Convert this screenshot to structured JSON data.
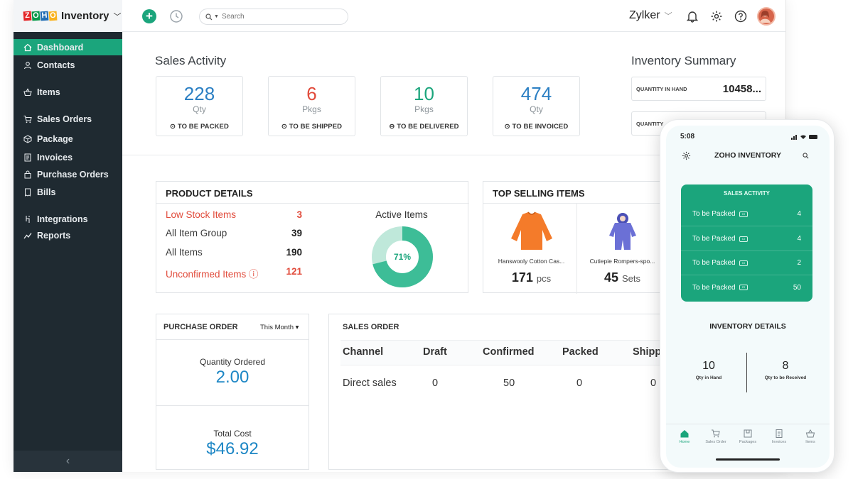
{
  "brand": {
    "logo_letters": [
      "Z",
      "O",
      "H",
      "O"
    ],
    "logo_colors": [
      "#e42527",
      "#089949",
      "#226db4",
      "#f9b21d"
    ],
    "product": "Inventory"
  },
  "sidebar": {
    "items": [
      {
        "label": "Dashboard",
        "icon": "home-icon"
      },
      {
        "label": "Contacts",
        "icon": "user-icon"
      },
      {
        "label": "Items",
        "icon": "basket-icon"
      },
      {
        "label": "Sales Orders",
        "icon": "cart-icon"
      },
      {
        "label": "Package",
        "icon": "box-icon"
      },
      {
        "label": "Invoices",
        "icon": "document-icon"
      },
      {
        "label": "Purchase Orders",
        "icon": "bag-icon"
      },
      {
        "label": "Bills",
        "icon": "bill-icon"
      },
      {
        "label": "Integrations",
        "icon": "integration-icon"
      },
      {
        "label": "Reports",
        "icon": "chart-icon"
      }
    ],
    "active_index": 0,
    "collapse_glyph": "‹"
  },
  "topbar": {
    "search_placeholder": "Search",
    "org_name": "Zylker"
  },
  "sales_activity": {
    "title": "Sales Activity",
    "cards": [
      {
        "value": "228",
        "unit": "Qty",
        "label": "TO BE PACKED",
        "color": "#2b7fc3",
        "icon": "check-circle-icon"
      },
      {
        "value": "6",
        "unit": "Pkgs",
        "label": "TO BE SHIPPED",
        "color": "#e14b3b",
        "icon": "truck-circle-icon"
      },
      {
        "value": "10",
        "unit": "Pkgs",
        "label": "TO BE DELIVERED",
        "color": "#1ba57c",
        "icon": "delivery-circle-icon"
      },
      {
        "value": "474",
        "unit": "Qty",
        "label": "TO BE INVOICED",
        "color": "#2b7fc3",
        "icon": "invoice-circle-icon"
      }
    ]
  },
  "inventory_summary": {
    "title": "Inventory Summary",
    "rows": [
      {
        "label": "QUANTITY IN HAND",
        "value": "10458..."
      },
      {
        "label": "QUANTITY",
        "value": ""
      }
    ]
  },
  "product_details": {
    "title": "PRODUCT DETAILS",
    "rows": [
      {
        "label": "Low Stock Items",
        "value": "3",
        "warn": true
      },
      {
        "label": "All Item Group",
        "value": "39",
        "warn": false
      },
      {
        "label": "All Items",
        "value": "190",
        "warn": false
      },
      {
        "label": "Unconfirmed Items ⓘ",
        "value": "121",
        "warn": true
      }
    ],
    "active_items_label": "Active Items",
    "active_items_percent": 71,
    "active_items_text": "71%"
  },
  "top_selling": {
    "title": "TOP SELLING ITEMS",
    "items": [
      {
        "name": "Hanswooly Cotton Cas...",
        "qty": "171",
        "unit": "pcs",
        "icon": "sweater-icon"
      },
      {
        "name": "Cutiepie Rompers-spo...",
        "qty": "45",
        "unit": "Sets",
        "icon": "romper-icon"
      }
    ]
  },
  "purchase_order": {
    "title": "PURCHASE ORDER",
    "period": "This Month",
    "qty_label": "Quantity Ordered",
    "qty_value": "2.00",
    "cost_label": "Total Cost",
    "cost_value": "$46.92"
  },
  "sales_order": {
    "title": "SALES ORDER",
    "columns": [
      "Channel",
      "Draft",
      "Confirmed",
      "Packed",
      "Shipp"
    ],
    "rows": [
      [
        "Direct sales",
        "0",
        "50",
        "0",
        "0"
      ]
    ]
  },
  "mobile": {
    "time": "5:08",
    "title": "ZOHO INVENTORY",
    "sales_activity_title": "SALES ACTIVITY",
    "sales_rows": [
      {
        "label": "To be Packed",
        "value": "4"
      },
      {
        "label": "To be Packed",
        "value": "4"
      },
      {
        "label": "To be Packed",
        "value": "2"
      },
      {
        "label": "To be Packed",
        "value": "50"
      }
    ],
    "inventory_title": "INVENTORY DETAILS",
    "stats": [
      {
        "value": "10",
        "label": "Qty in Hand"
      },
      {
        "value": "8",
        "label": "Qty to be Received"
      }
    ],
    "tabs": [
      "Home",
      "Sales Order",
      "Packages",
      "Invoices",
      "Items"
    ]
  },
  "colors": {
    "accent": "#1ba57c",
    "sidebar_bg": "#1f2a31",
    "warn": "#e14b3b",
    "blue": "#1e87c5"
  }
}
